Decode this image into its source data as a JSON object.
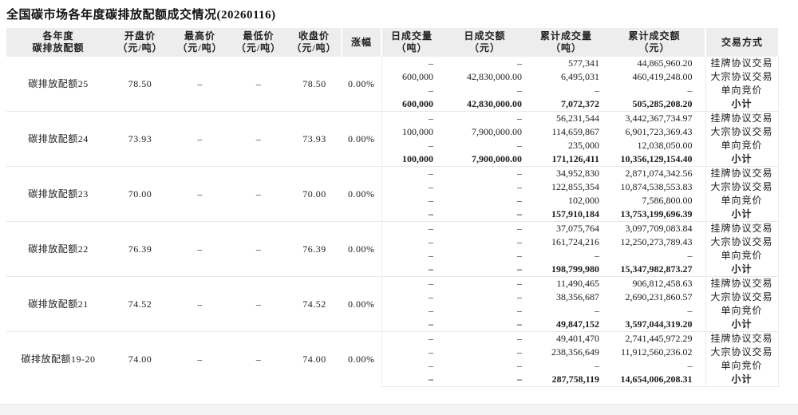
{
  "title": "全国碳市场各年度碳排放配额成交情况(20260116)",
  "table": {
    "headers": [
      {
        "line1": "各年度",
        "line2": "碳排放配额"
      },
      {
        "line1": "开盘价",
        "line2": "（元/吨）"
      },
      {
        "line1": "最高价",
        "line2": "（元/吨）"
      },
      {
        "line1": "最低价",
        "line2": "（元/吨）"
      },
      {
        "line1": "收盘价",
        "line2": "（元/吨）"
      },
      {
        "line1": "涨幅",
        "line2": ""
      },
      {
        "line1": "日成交量",
        "line2": "（吨）"
      },
      {
        "line1": "日成交额",
        "line2": "（元）"
      },
      {
        "line1": "累计成交量",
        "line2": "（吨）"
      },
      {
        "line1": "累计成交额",
        "line2": "（元）"
      },
      {
        "line1": "交易方式",
        "line2": ""
      }
    ],
    "groups": [
      {
        "name": "碳排放配额25",
        "open": "78.50",
        "high": "–",
        "low": "–",
        "close": "78.50",
        "change": "0.00%",
        "rows": [
          {
            "daily_volume": "–",
            "daily_amount": "–",
            "cum_volume": "577,341",
            "cum_amount": "44,865,960.20",
            "method": "挂牌协议交易"
          },
          {
            "daily_volume": "600,000",
            "daily_amount": "42,830,000.00",
            "cum_volume": "6,495,031",
            "cum_amount": "460,419,248.00",
            "method": "大宗协议交易"
          },
          {
            "daily_volume": "–",
            "daily_amount": "–",
            "cum_volume": "–",
            "cum_amount": "–",
            "method": "单向竞价"
          },
          {
            "daily_volume": "600,000",
            "daily_amount": "42,830,000.00",
            "cum_volume": "7,072,372",
            "cum_amount": "505,285,208.20",
            "method": "小计"
          }
        ]
      },
      {
        "name": "碳排放配额24",
        "open": "73.93",
        "high": "–",
        "low": "–",
        "close": "73.93",
        "change": "0.00%",
        "rows": [
          {
            "daily_volume": "–",
            "daily_amount": "–",
            "cum_volume": "56,231,544",
            "cum_amount": "3,442,367,734.97",
            "method": "挂牌协议交易"
          },
          {
            "daily_volume": "100,000",
            "daily_amount": "7,900,000.00",
            "cum_volume": "114,659,867",
            "cum_amount": "6,901,723,369.43",
            "method": "大宗协议交易"
          },
          {
            "daily_volume": "–",
            "daily_amount": "–",
            "cum_volume": "235,000",
            "cum_amount": "12,038,050.00",
            "method": "单向竞价"
          },
          {
            "daily_volume": "100,000",
            "daily_amount": "7,900,000.00",
            "cum_volume": "171,126,411",
            "cum_amount": "10,356,129,154.40",
            "method": "小计"
          }
        ]
      },
      {
        "name": "碳排放配额23",
        "open": "70.00",
        "high": "–",
        "low": "–",
        "close": "70.00",
        "change": "0.00%",
        "rows": [
          {
            "daily_volume": "–",
            "daily_amount": "–",
            "cum_volume": "34,952,830",
            "cum_amount": "2,871,074,342.56",
            "method": "挂牌协议交易"
          },
          {
            "daily_volume": "–",
            "daily_amount": "–",
            "cum_volume": "122,855,354",
            "cum_amount": "10,874,538,553.83",
            "method": "大宗协议交易"
          },
          {
            "daily_volume": "–",
            "daily_amount": "–",
            "cum_volume": "102,000",
            "cum_amount": "7,586,800.00",
            "method": "单向竞价"
          },
          {
            "daily_volume": "–",
            "daily_amount": "–",
            "cum_volume": "157,910,184",
            "cum_amount": "13,753,199,696.39",
            "method": "小计"
          }
        ]
      },
      {
        "name": "碳排放配额22",
        "open": "76.39",
        "high": "–",
        "low": "–",
        "close": "76.39",
        "change": "0.00%",
        "rows": [
          {
            "daily_volume": "–",
            "daily_amount": "–",
            "cum_volume": "37,075,764",
            "cum_amount": "3,097,709,083.84",
            "method": "挂牌协议交易"
          },
          {
            "daily_volume": "–",
            "daily_amount": "–",
            "cum_volume": "161,724,216",
            "cum_amount": "12,250,273,789.43",
            "method": "大宗协议交易"
          },
          {
            "daily_volume": "–",
            "daily_amount": "–",
            "cum_volume": "–",
            "cum_amount": "–",
            "method": "单向竞价"
          },
          {
            "daily_volume": "–",
            "daily_amount": "–",
            "cum_volume": "198,799,980",
            "cum_amount": "15,347,982,873.27",
            "method": "小计"
          }
        ]
      },
      {
        "name": "碳排放配额21",
        "open": "74.52",
        "high": "–",
        "low": "–",
        "close": "74.52",
        "change": "0.00%",
        "rows": [
          {
            "daily_volume": "–",
            "daily_amount": "–",
            "cum_volume": "11,490,465",
            "cum_amount": "906,812,458.63",
            "method": "挂牌协议交易"
          },
          {
            "daily_volume": "–",
            "daily_amount": "–",
            "cum_volume": "38,356,687",
            "cum_amount": "2,690,231,860.57",
            "method": "大宗协议交易"
          },
          {
            "daily_volume": "–",
            "daily_amount": "–",
            "cum_volume": "–",
            "cum_amount": "–",
            "method": "单向竞价"
          },
          {
            "daily_volume": "–",
            "daily_amount": "–",
            "cum_volume": "49,847,152",
            "cum_amount": "3,597,044,319.20",
            "method": "小计"
          }
        ]
      },
      {
        "name": "碳排放配额19-20",
        "open": "74.00",
        "high": "–",
        "low": "–",
        "close": "74.00",
        "change": "0.00%",
        "rows": [
          {
            "daily_volume": "–",
            "daily_amount": "–",
            "cum_volume": "49,401,470",
            "cum_amount": "2,741,445,972.29",
            "method": "挂牌协议交易"
          },
          {
            "daily_volume": "–",
            "daily_amount": "–",
            "cum_volume": "238,356,649",
            "cum_amount": "11,912,560,236.02",
            "method": "大宗协议交易"
          },
          {
            "daily_volume": "–",
            "daily_amount": "–",
            "cum_volume": "–",
            "cum_amount": "–",
            "method": "单向竞价"
          },
          {
            "daily_volume": "–",
            "daily_amount": "–",
            "cum_volume": "287,758,119",
            "cum_amount": "14,654,006,208.31",
            "method": "小计"
          }
        ]
      }
    ]
  },
  "colors": {
    "header_bg": "#ededed",
    "row_separator": "#e8e8e8",
    "text": "#1c1c1c"
  }
}
